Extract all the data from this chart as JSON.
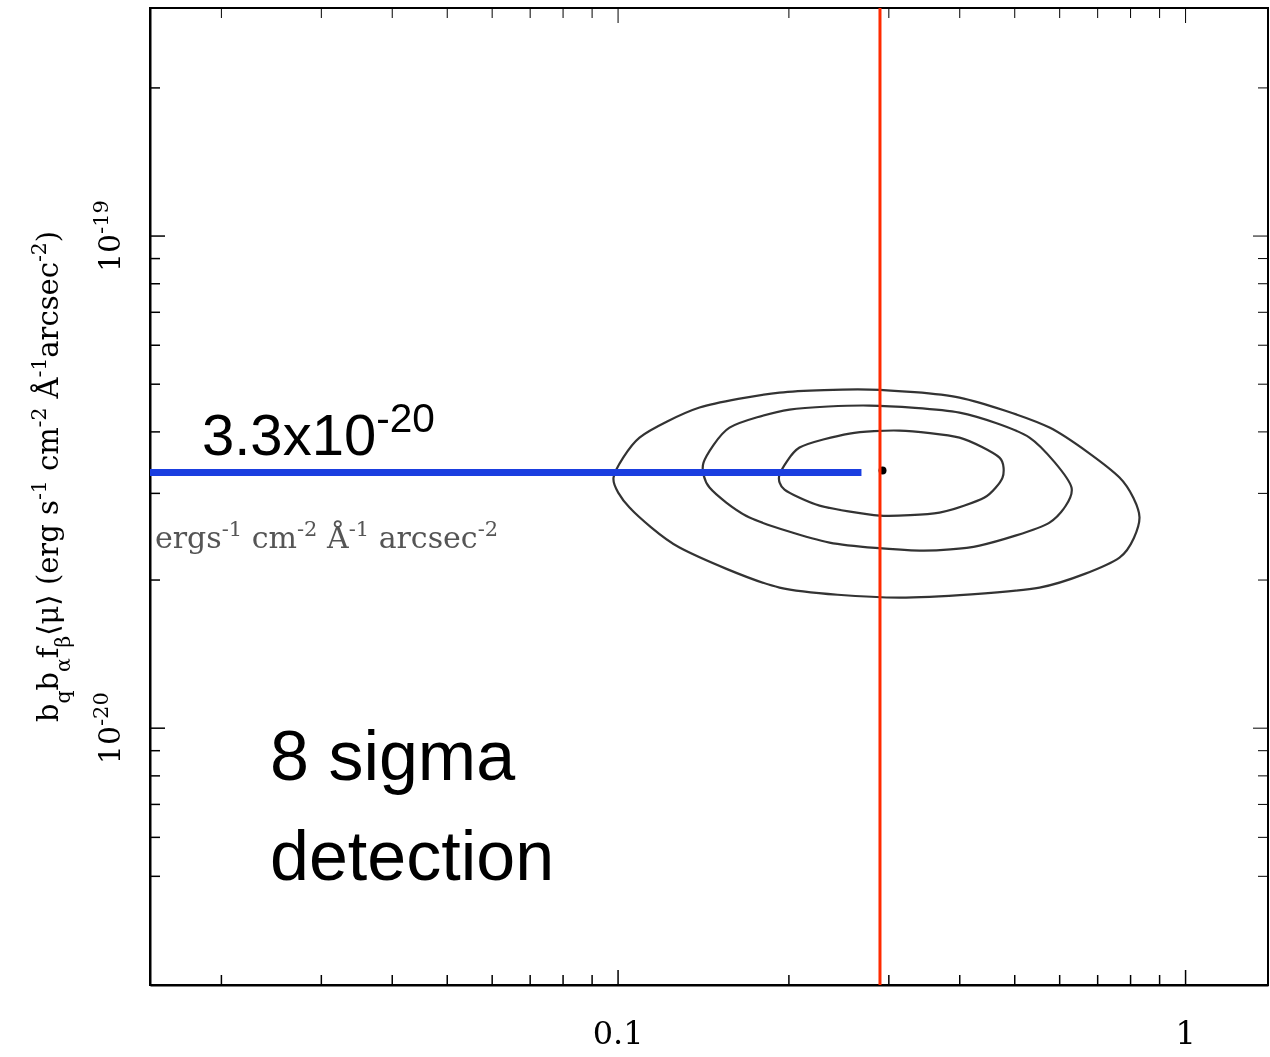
{
  "chart_data": {
    "type": "line",
    "ylabel": "b$_{q}$b$_{α}$f$_{β}$⟨μ⟩ (erg s$^{-1}$ cm$^{-2}$ Å$^{-1}$arcsec$^{-2}$)",
    "log": "xy",
    "grid": false,
    "marker": "none",
    "line_style": "solid",
    "xlim": [
      0.015,
      1.4
    ],
    "xticks": [
      {
        "value": 0.02,
        "label": null
      },
      {
        "value": 0.03,
        "label": null
      },
      {
        "value": 0.04,
        "label": null
      },
      {
        "value": 0.05,
        "label": null
      },
      {
        "value": 0.06,
        "label": null
      },
      {
        "value": 0.07,
        "label": null
      },
      {
        "value": 0.08,
        "label": null
      },
      {
        "value": 0.09,
        "label": null
      },
      0.1,
      {
        "value": 0.2,
        "label": null
      },
      {
        "value": 0.3,
        "label": null
      },
      {
        "value": 0.4,
        "label": null
      },
      {
        "value": 0.5,
        "label": null
      },
      {
        "value": 0.6,
        "label": null
      },
      {
        "value": 0.7,
        "label": null
      },
      {
        "value": 0.8,
        "label": null
      },
      {
        "value": 0.9,
        "label": null
      },
      1
    ],
    "ylim": [
      3e-21,
      2.9e-19
    ],
    "yticks": [
      {
        "value": 5e-21,
        "label": null
      },
      {
        "value": 6e-21,
        "label": null
      },
      {
        "value": 7e-21,
        "label": null
      },
      {
        "value": 8e-21,
        "label": null
      },
      {
        "value": 9e-21,
        "label": null
      },
      {
        "value": 1e-20,
        "label": "10$^{-20}$"
      },
      {
        "value": 2e-20,
        "label": null
      },
      {
        "value": 3e-20,
        "label": null
      },
      {
        "value": 4e-20,
        "label": null
      },
      {
        "value": 5e-20,
        "label": null
      },
      {
        "value": 6e-20,
        "label": null
      },
      {
        "value": 7e-20,
        "label": null
      },
      {
        "value": 8e-20,
        "label": null
      },
      {
        "value": 9e-20,
        "label": null
      },
      {
        "value": 1e-19,
        "label": "10$^{-19}$"
      },
      {
        "value": 2e-19,
        "label": null
      }
    ],
    "series": [
      {
        "color": "#1a3ee0",
        "x": [
          0.015,
          0.269
        ],
        "values": [
          3.3e-20,
          3.3e-20
        ]
      },
      {
        "type": "scatter",
        "color": "#000000",
        "marker": "circle",
        "x": [
          0.293
        ],
        "values": [
          3.33e-20
        ]
      },
      {
        "color": "#ff2a00",
        "x": [
          0.29,
          0.29
        ],
        "values": [
          2.9e-19,
          3e-21
        ]
      }
    ],
    "annotations": [
      "3.3x10$^{-20}$",
      "ergs$^{-1}$ cm$^{-2}$ Å$^{-1}$ arcsec$^{-2}$",
      "8 sigma\ndetection"
    ]
  }
}
